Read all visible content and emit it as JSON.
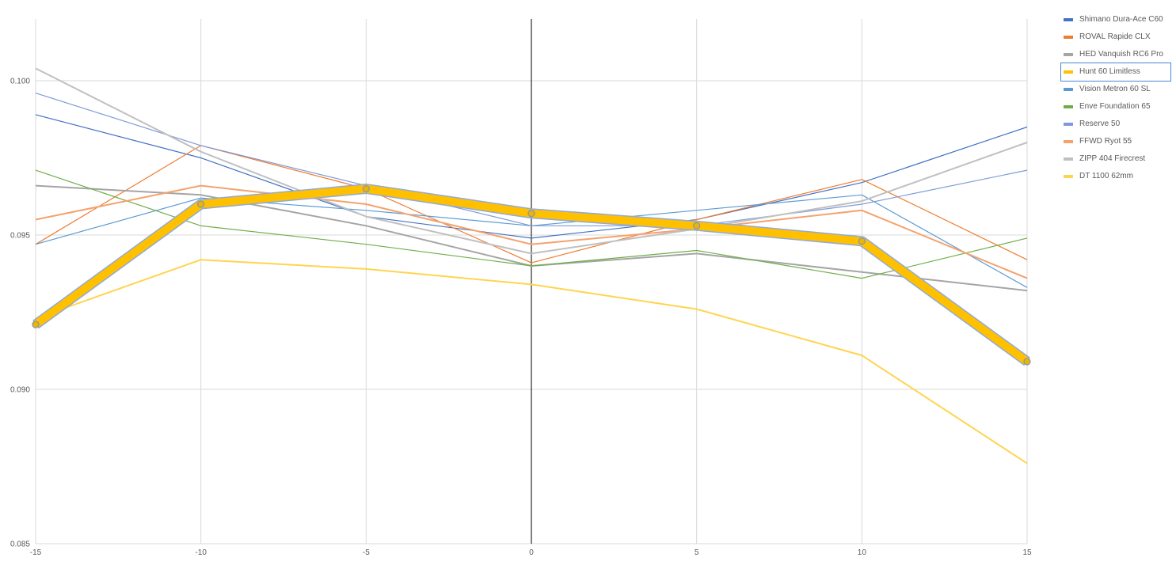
{
  "chart_data": {
    "type": "line",
    "title": "",
    "xlabel": "",
    "ylabel": "",
    "x": [
      -15,
      -10,
      -5,
      0,
      5,
      10,
      15
    ],
    "x_ticks": [
      "-15",
      "-10",
      "-5",
      "0",
      "5",
      "10",
      "15"
    ],
    "y_ticks": [
      "0.085",
      "0.090",
      "0.095",
      "0.100"
    ],
    "xlim": [
      -15,
      15
    ],
    "ylim": [
      0.085,
      0.102
    ],
    "grid": true,
    "legend_position": "right",
    "highlighted_series": "Hunt 60 Limitless",
    "series": [
      {
        "name": "Shimano Dura-Ace C60",
        "color": "#4472c4",
        "values": [
          0.0989,
          0.0975,
          0.0956,
          0.0949,
          0.0955,
          0.0967,
          0.0985
        ]
      },
      {
        "name": "ROVAL Rapide CLX",
        "color": "#ed7d31",
        "values": [
          0.0947,
          0.0979,
          0.0965,
          0.0941,
          0.0955,
          0.0968,
          0.0942
        ]
      },
      {
        "name": "HED Vanquish RC6 Pro",
        "color": "#a5a5a5",
        "values": [
          0.0966,
          0.0963,
          0.0953,
          0.094,
          0.0944,
          0.0938,
          0.0932
        ]
      },
      {
        "name": "Hunt 60 Limitless",
        "color": "#ffc000",
        "values": [
          0.0921,
          0.096,
          0.0965,
          0.0957,
          0.0953,
          0.0948,
          0.0909
        ]
      },
      {
        "name": "Vision Metron 60 SL",
        "color": "#5b9bd5",
        "values": [
          0.0947,
          0.0962,
          0.0958,
          0.0953,
          0.0958,
          0.0963,
          0.0933
        ]
      },
      {
        "name": "Enve Foundation 65",
        "color": "#70ad47",
        "values": [
          0.0971,
          0.0953,
          0.0947,
          0.094,
          0.0945,
          0.0936,
          0.0949
        ]
      },
      {
        "name": "Reserve 50",
        "color": "#7f9bd6",
        "values": [
          0.0996,
          0.0979,
          0.0966,
          0.0953,
          0.0953,
          0.096,
          0.0971
        ]
      },
      {
        "name": "FFWD Ryot 55",
        "color": "#f4a26d",
        "values": [
          0.0955,
          0.0966,
          0.096,
          0.0947,
          0.0952,
          0.0958,
          0.0936
        ]
      },
      {
        "name": "ZIPP 404 Firecrest",
        "color": "#c0c0c0",
        "values": [
          0.1004,
          0.0977,
          0.0956,
          0.0944,
          0.0952,
          0.0961,
          0.098
        ]
      },
      {
        "name": "DT 1100 62mm",
        "color": "#ffd44f",
        "values": [
          0.0923,
          0.0942,
          0.0939,
          0.0934,
          0.0926,
          0.0911,
          0.0876
        ]
      }
    ]
  }
}
